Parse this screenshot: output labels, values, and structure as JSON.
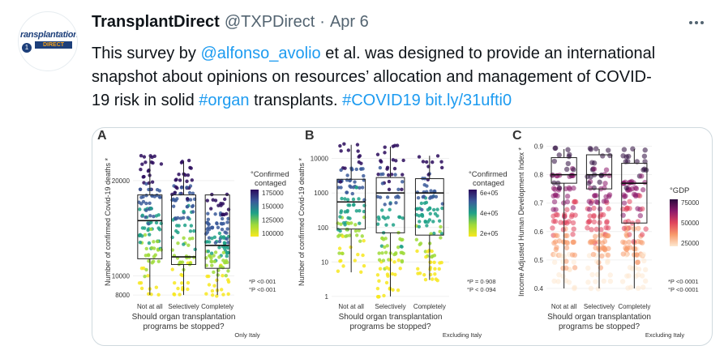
{
  "account": {
    "avatar_text": "ransplantation",
    "avatar_sub": "DIRECT",
    "avatar_badge": "1",
    "display_name": "TransplantDirect",
    "handle": "@TXPDirect",
    "separator": "·",
    "date": "Apr 6"
  },
  "tweet": {
    "line1_pre": "This survey by ",
    "mention": "@alfonso_avolio",
    "line1_post": " et al. was designed to provide an international",
    "line2": "snapshot about opinions on resources’ allocation and management of COVID-",
    "line3_pre": "19 risk in solid ",
    "hashtag1": "#organ",
    "line3_mid": " transplants. ",
    "hashtag2": "#COVID19",
    "space": " ",
    "link": "bit.ly/31ufti0"
  },
  "figure": {
    "x_categories": [
      "Not at all",
      "Selectively",
      "Completely"
    ],
    "x_title_line1": "Should organ transplantation",
    "x_title_line2": "programs be stopped?",
    "panels": [
      {
        "letter": "A",
        "ylabel": "Number of confirmed Covid-19 deaths *",
        "yticks": [
          "20000",
          "10000",
          "8000"
        ],
        "legend_title_1": "°Confirmed",
        "legend_title_2": "contaged",
        "legend_ticks": [
          "175000",
          "150000",
          "125000",
          "100000"
        ],
        "legend_colors": [
          "#2a0a5c",
          "#3b5a9a",
          "#1fa187",
          "#9fda3a",
          "#f7e81f"
        ],
        "pvalues": [
          "*P <0·001",
          "°P <0·001"
        ],
        "footnote": "Only Italy",
        "boxes": [
          {
            "q1": 11800,
            "median": 15800,
            "q3": 18500,
            "lo": 8000,
            "hi": 22500
          },
          {
            "q1": 11200,
            "median": 12000,
            "q3": 18500,
            "lo": 8000,
            "hi": 22000
          },
          {
            "q1": 10800,
            "median": 13200,
            "q3": 18500,
            "lo": 8000,
            "hi": 18500
          }
        ]
      },
      {
        "letter": "B",
        "ylabel": "Number of confirmed Covid-19 deaths *",
        "yticks": [
          "10000",
          "1000",
          "100",
          "10",
          "1"
        ],
        "legend_title_1": "°Confirmed",
        "legend_title_2": "contaged",
        "legend_ticks": [
          "6e+05",
          "4e+05",
          "2e+05"
        ],
        "legend_colors": [
          "#2a0a5c",
          "#3b5a9a",
          "#1fa187",
          "#9fda3a",
          "#f7e81f"
        ],
        "pvalues": [
          "*P = 0·908",
          "°P < 0·094"
        ],
        "footnote": "Excluding Italy",
        "boxes": [
          {
            "q1": 90,
            "median": 550,
            "q3": 2500,
            "lo": 5,
            "hi": 25000
          },
          {
            "q1": 70,
            "median": 1000,
            "q3": 2800,
            "lo": 1,
            "hi": 22000
          },
          {
            "q1": 60,
            "median": 1000,
            "q3": 2600,
            "lo": 3,
            "hi": 12000
          }
        ]
      },
      {
        "letter": "C",
        "ylabel": "Income Adjusted Human Development Index *",
        "yticks": [
          "0.9",
          "0.8",
          "0.7",
          "0.6",
          "0.5",
          "0.4"
        ],
        "legend_title_1": "°GDP",
        "legend_title_2": "",
        "legend_ticks": [
          "75000",
          "50000",
          "25000"
        ],
        "legend_colors": [
          "#2b0a3d",
          "#8c1a6b",
          "#e0445c",
          "#f89a6b",
          "#fde8d0"
        ],
        "pvalues": [
          "*P <0·0001",
          "°P <0·0001"
        ],
        "footnote": "Excluding Italy",
        "boxes": [
          {
            "q1": 0.77,
            "median": 0.8,
            "q3": 0.86,
            "lo": 0.4,
            "hi": 0.89
          },
          {
            "q1": 0.75,
            "median": 0.8,
            "q3": 0.87,
            "lo": 0.4,
            "hi": 0.89
          },
          {
            "q1": 0.63,
            "median": 0.77,
            "q3": 0.84,
            "lo": 0.4,
            "hi": 0.89
          }
        ]
      }
    ]
  }
}
